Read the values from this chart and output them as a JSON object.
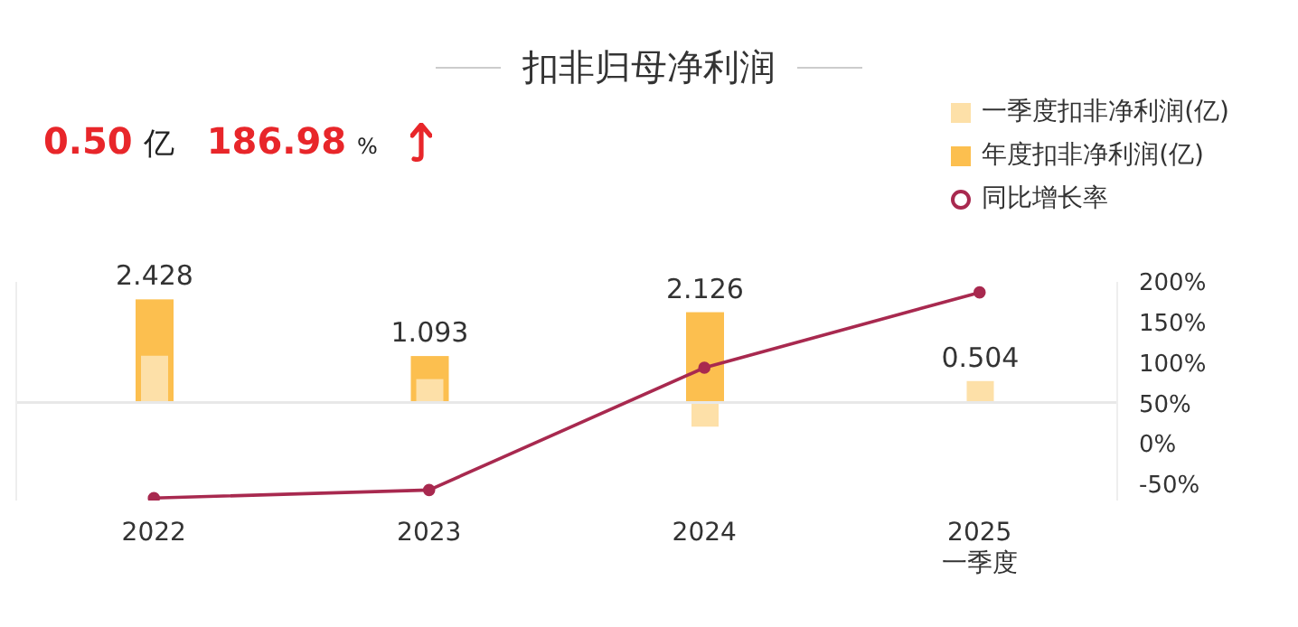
{
  "chart_data": {
    "type": "bar",
    "title": "扣非归母净利润",
    "annotations": [
      "0.50 亿",
      "186.98 %"
    ],
    "categories": [
      "2022",
      "2023",
      "2024",
      "2025\n一季度"
    ],
    "series": [
      {
        "name": "年度扣非净利润(亿)",
        "color": "#fcbf4f",
        "values": [
          2.428,
          1.093,
          2.126,
          null
        ],
        "value_labels": [
          "2.428",
          "1.093",
          "2.126",
          null
        ]
      },
      {
        "name": "一季度扣非净利润(亿)",
        "color": "#fde0a8",
        "values": [
          1.1,
          0.55,
          -0.57,
          0.504
        ],
        "value_labels": [
          null,
          null,
          null,
          "0.504"
        ]
      },
      {
        "name": "同比增长率",
        "type": "line",
        "axis": "y2",
        "color": "#a8294f",
        "values": [
          -67,
          -57,
          94,
          187
        ]
      }
    ],
    "ylim": [
      -2.31,
      2.84
    ],
    "y2lim": [
      -70,
      200
    ],
    "y2ticks": [
      {
        "value": -50,
        "label": "-50%"
      },
      {
        "value": 0,
        "label": "0%"
      },
      {
        "value": 50,
        "label": "50%"
      },
      {
        "value": 100,
        "label": "100%"
      },
      {
        "value": 150,
        "label": "150%"
      },
      {
        "value": 200,
        "label": "200%"
      }
    ],
    "ref_lines": [
      {
        "axis": "y",
        "value": 0,
        "color": "#e8e8e8"
      }
    ],
    "legend": "top right",
    "marker": "circle",
    "line_style": "solid",
    "grid": false
  }
}
